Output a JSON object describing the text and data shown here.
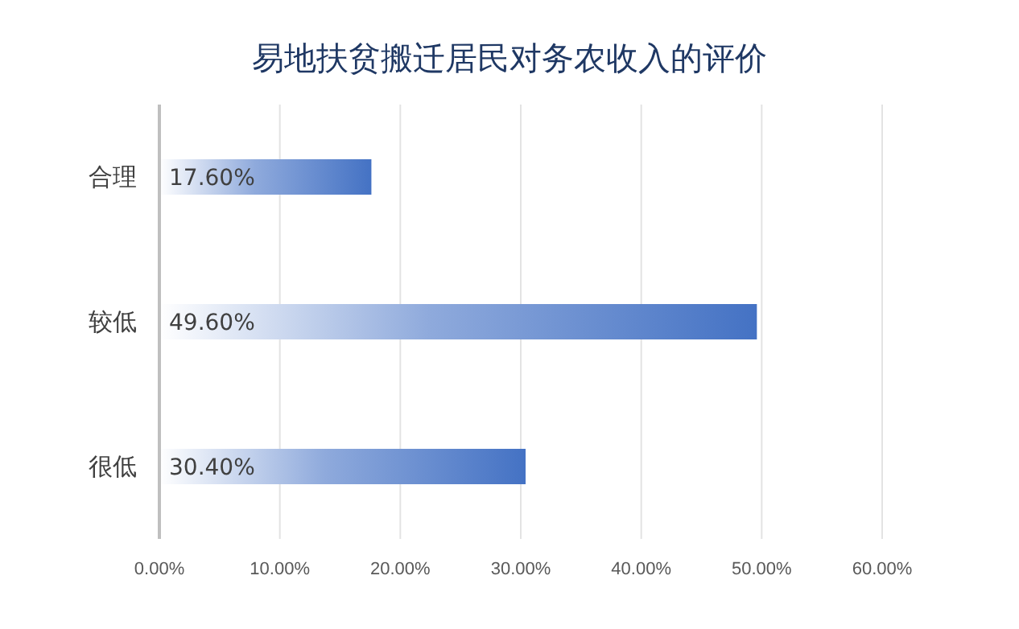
{
  "chart_data": {
    "type": "bar",
    "orientation": "horizontal",
    "title": "易地扶贫搬迁居民对务农收入的评价",
    "categories": [
      "合理",
      "较低",
      "很低"
    ],
    "values": [
      17.6,
      49.6,
      30.4
    ],
    "value_labels": [
      "17.60%",
      "49.60%",
      "30.40%"
    ],
    "color": "#4472c4",
    "xlim": [
      0,
      60
    ],
    "xticks": [
      {
        "value": 0,
        "label": "0.00%"
      },
      {
        "value": 10,
        "label": "10.00%"
      },
      {
        "value": 20,
        "label": "20.00%"
      },
      {
        "value": 30,
        "label": "30.00%"
      },
      {
        "value": 40,
        "label": "40.00%"
      },
      {
        "value": 50,
        "label": "50.00%"
      },
      {
        "value": 60,
        "label": "60.00%"
      }
    ],
    "grid": "x"
  }
}
